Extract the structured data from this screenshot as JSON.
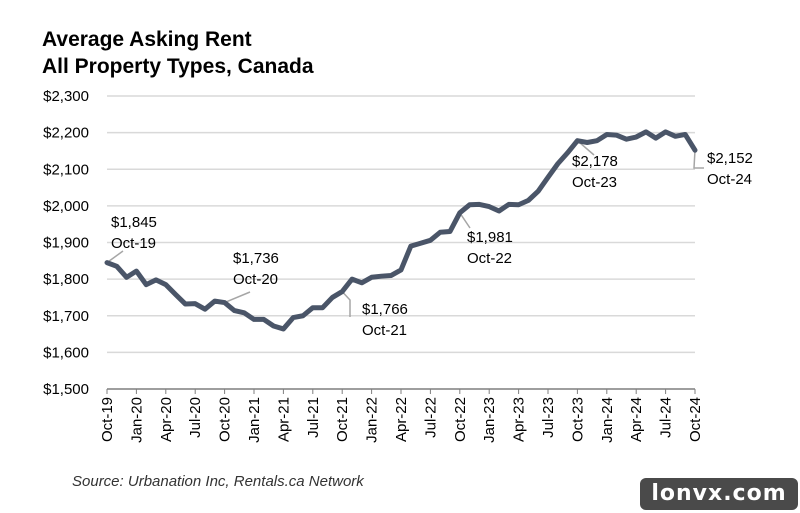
{
  "title_lines": [
    "Average Asking Rent",
    "All Property Types, Canada"
  ],
  "source": "Source: Urbanation Inc, Rentals.ca Network",
  "watermark": "lonvx.com",
  "colors": {
    "line": "#4a5568",
    "grid": "#d9d9d9",
    "axis": "#7f7f7f",
    "callout": "#a6a6a6"
  },
  "chart_data": {
    "type": "line",
    "title": "Average Asking Rent\nAll Property Types, Canada",
    "xlabel": "",
    "ylabel": "",
    "ylim": [
      1500,
      2300
    ],
    "yticks": [
      1500,
      1600,
      1700,
      1800,
      1900,
      2000,
      2100,
      2200,
      2300
    ],
    "ytick_labels": [
      "$1,500",
      "$1,600",
      "$1,700",
      "$1,800",
      "$1,900",
      "$2,000",
      "$2,100",
      "$2,200",
      "$2,300"
    ],
    "grid": true,
    "legend": "none",
    "x": [
      "Oct-19",
      "Nov-19",
      "Dec-19",
      "Jan-20",
      "Feb-20",
      "Mar-20",
      "Apr-20",
      "May-20",
      "Jun-20",
      "Jul-20",
      "Aug-20",
      "Sep-20",
      "Oct-20",
      "Nov-20",
      "Dec-20",
      "Jan-21",
      "Feb-21",
      "Mar-21",
      "Apr-21",
      "May-21",
      "Jun-21",
      "Jul-21",
      "Aug-21",
      "Sep-21",
      "Oct-21",
      "Nov-21",
      "Dec-21",
      "Jan-22",
      "Feb-22",
      "Mar-22",
      "Apr-22",
      "May-22",
      "Jun-22",
      "Jul-22",
      "Aug-22",
      "Sep-22",
      "Oct-22",
      "Nov-22",
      "Dec-22",
      "Jan-23",
      "Feb-23",
      "Mar-23",
      "Apr-23",
      "May-23",
      "Jun-23",
      "Jul-23",
      "Aug-23",
      "Sep-23",
      "Oct-23",
      "Nov-23",
      "Dec-23",
      "Jan-24",
      "Feb-24",
      "Mar-24",
      "Apr-24",
      "May-24",
      "Jun-24",
      "Jul-24",
      "Aug-24",
      "Sep-24",
      "Oct-24"
    ],
    "xtick_labels": [
      "Oct-19",
      "Jan-20",
      "Apr-20",
      "Jul-20",
      "Oct-20",
      "Jan-21",
      "Apr-21",
      "Jul-21",
      "Oct-21",
      "Jan-22",
      "Apr-22",
      "Jul-22",
      "Oct-22",
      "Jan-23",
      "Apr-23",
      "Jul-23",
      "Oct-23",
      "Jan-24",
      "Apr-24",
      "Jul-24",
      "Oct-24"
    ],
    "series": [
      {
        "values": [
          1845,
          1835,
          1805,
          1822,
          1785,
          1798,
          1785,
          1758,
          1732,
          1733,
          1718,
          1740,
          1736,
          1714,
          1708,
          1690,
          1690,
          1672,
          1664,
          1695,
          1700,
          1722,
          1722,
          1750,
          1766,
          1800,
          1790,
          1805,
          1808,
          1810,
          1825,
          1890,
          1898,
          1906,
          1928,
          1930,
          1981,
          2003,
          2004,
          1998,
          1986,
          2004,
          2003,
          2015,
          2040,
          2078,
          2115,
          2145,
          2178,
          2173,
          2178,
          2195,
          2193,
          2182,
          2188,
          2202,
          2185,
          2202,
          2190,
          2195,
          2152
        ]
      }
    ],
    "annotations": [
      {
        "index": 0,
        "value": "$1,845",
        "label": "Oct-19"
      },
      {
        "index": 12,
        "value": "$1,736",
        "label": "Oct-20"
      },
      {
        "index": 24,
        "value": "$1,766",
        "label": "Oct-21"
      },
      {
        "index": 36,
        "value": "$1,981",
        "label": "Oct-22"
      },
      {
        "index": 48,
        "value": "$2,178",
        "label": "Oct-23"
      },
      {
        "index": 60,
        "value": "$2,152",
        "label": "Oct-24"
      }
    ]
  }
}
